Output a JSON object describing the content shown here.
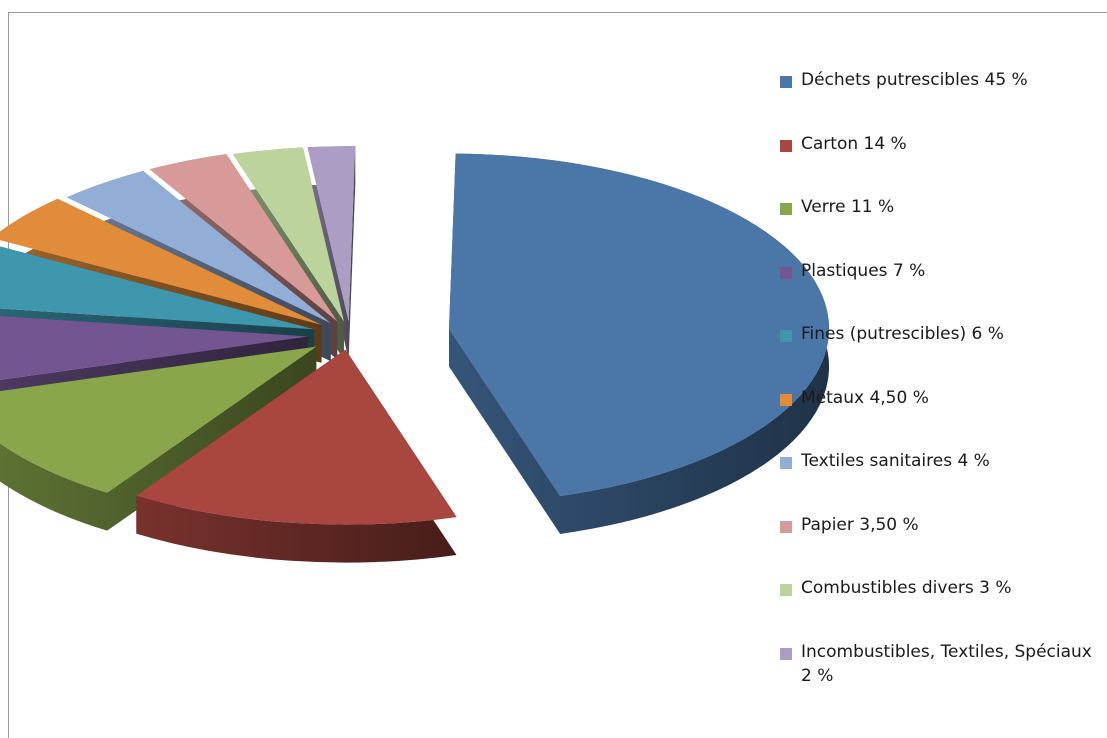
{
  "chart_data": {
    "type": "pie",
    "style": "3d-exploded",
    "categories": [
      "Déchets putrescibles 45 %",
      "Carton 14 %",
      "Verre 11 %",
      "Plastiques 7 %",
      "Fines (putrescibles) 6 %",
      "Métaux 4,50 %",
      "Textiles sanitaires 4 %",
      "Papier 3,50 %",
      "Combustibles divers 3 %",
      "Incombustibles, Textiles, Spéciaux 2 %"
    ],
    "values": [
      45,
      14,
      11,
      7,
      6,
      4.5,
      4,
      3.5,
      3,
      2
    ],
    "colors": [
      "#4a76a8",
      "#a8463f",
      "#8aa64b",
      "#735592",
      "#3f97ad",
      "#e08c3a",
      "#93aed6",
      "#d89a98",
      "#bcd39b",
      "#ab9dc3"
    ],
    "title": "",
    "legend_position": "right"
  }
}
